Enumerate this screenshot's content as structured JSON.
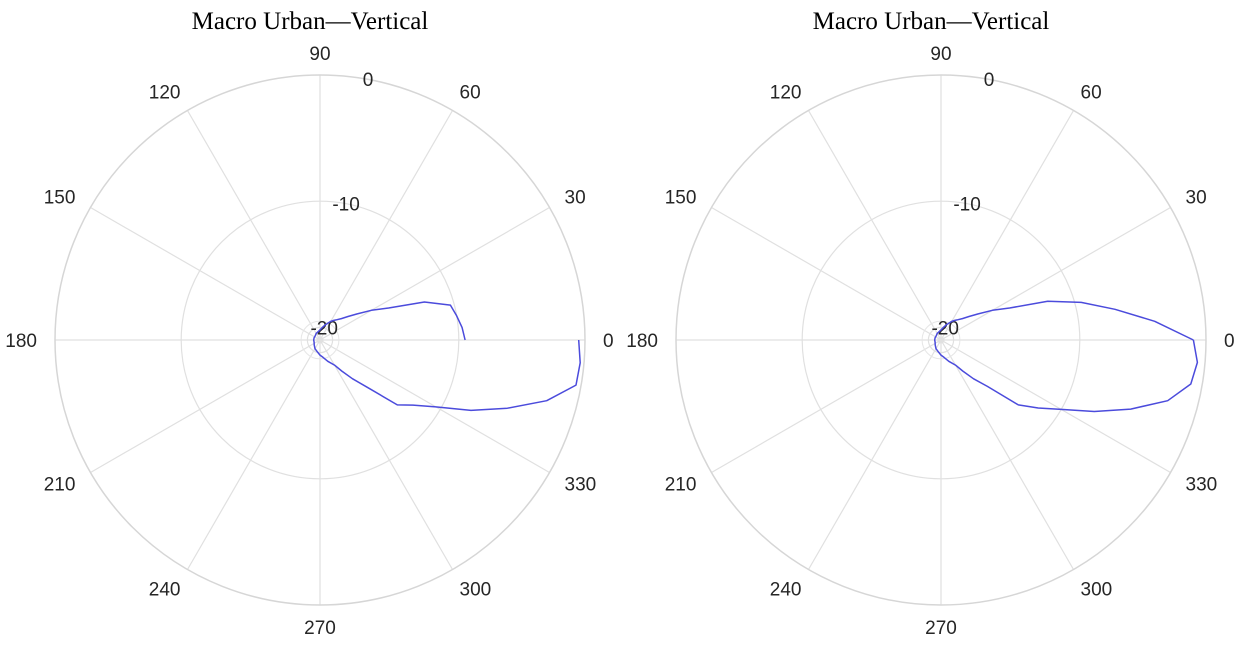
{
  "chart_data": [
    {
      "type": "line",
      "title": "Macro Urban—Vertical",
      "coordinate_system": "polar",
      "theta_ticks": [
        "0",
        "30",
        "60",
        "90",
        "120",
        "150",
        "180",
        "210",
        "240",
        "270",
        "300",
        "330"
      ],
      "r_ticks": [
        "-20",
        "-10",
        "0"
      ],
      "rlim": [
        -21,
        0
      ],
      "grid": true,
      "series": [
        {
          "color": "#4b4bdc",
          "theta_deg": [
            0,
            5,
            10,
            15,
            20,
            25,
            30,
            35,
            40,
            45,
            50,
            55,
            60,
            70,
            80,
            90,
            100,
            120,
            140,
            160,
            180,
            200,
            220,
            240,
            260,
            270,
            280,
            290,
            300,
            305,
            310,
            315,
            320,
            325,
            330,
            335,
            340,
            345,
            350,
            355,
            360
          ],
          "r_db": [
            -9.5,
            -9.7,
            -10.0,
            -10.3,
            -12.2,
            -15.0,
            -16.3,
            -17.4,
            -18.1,
            -18.6,
            -18.9,
            -19.1,
            -19.3,
            -19.7,
            -20.0,
            -20.2,
            -20.3,
            -20.4,
            -20.5,
            -20.5,
            -20.5,
            -20.5,
            -20.4,
            -20.2,
            -20.0,
            -19.8,
            -19.6,
            -19.2,
            -18.7,
            -18.0,
            -17.0,
            -15.7,
            -13.0,
            -12.0,
            -10.4,
            -7.8,
            -5.2,
            -2.4,
            -0.4,
            -0.3,
            -0.5
          ]
        }
      ]
    },
    {
      "type": "line",
      "title": "Macro Urban—Vertical",
      "coordinate_system": "polar",
      "theta_ticks": [
        "0",
        "30",
        "60",
        "90",
        "120",
        "150",
        "180",
        "210",
        "240",
        "270",
        "300",
        "330"
      ],
      "r_ticks": [
        "-20",
        "-10",
        "0"
      ],
      "rlim": [
        -21,
        0
      ],
      "grid": true,
      "series": [
        {
          "color": "#4b4bdc",
          "theta_deg": [
            0,
            5,
            10,
            15,
            20,
            25,
            30,
            35,
            40,
            45,
            50,
            55,
            60,
            70,
            80,
            90,
            100,
            120,
            140,
            160,
            180,
            200,
            220,
            240,
            260,
            270,
            280,
            290,
            300,
            305,
            310,
            315,
            320,
            325,
            330,
            335,
            340,
            345,
            350,
            355,
            360
          ],
          "r_db": [
            -1.0,
            -4.0,
            -7.0,
            -9.5,
            -12.0,
            -15.0,
            -16.3,
            -17.4,
            -18.1,
            -18.6,
            -18.9,
            -19.1,
            -19.3,
            -19.7,
            -20.0,
            -20.2,
            -20.3,
            -20.4,
            -20.5,
            -20.5,
            -20.5,
            -20.5,
            -20.4,
            -20.2,
            -20.0,
            -19.8,
            -19.6,
            -19.2,
            -18.7,
            -18.0,
            -17.0,
            -15.8,
            -13.0,
            -11.6,
            -10.0,
            -7.6,
            -5.0,
            -2.4,
            -0.9,
            -0.6,
            -1.0
          ]
        }
      ]
    }
  ]
}
